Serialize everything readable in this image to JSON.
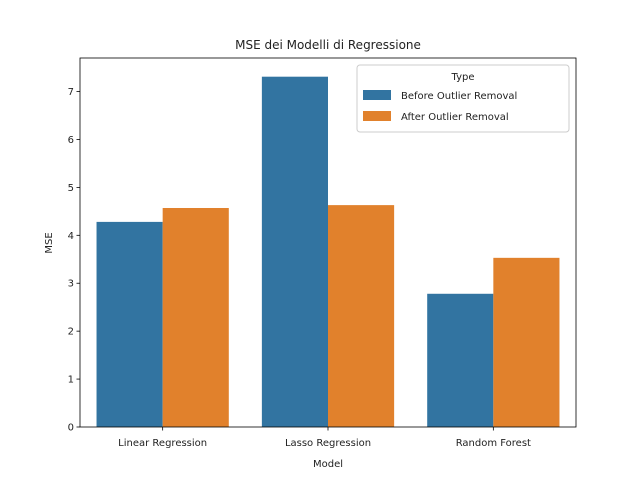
{
  "chart_data": {
    "type": "bar",
    "title": "MSE dei Modelli di Regressione",
    "xlabel": "Model",
    "ylabel": "MSE",
    "categories": [
      "Linear Regression",
      "Lasso Regression",
      "Random Forest"
    ],
    "series": [
      {
        "name": "Before Outlier Removal",
        "values": [
          4.28,
          7.31,
          2.78
        ],
        "color": "#3274a1"
      },
      {
        "name": "After Outlier Removal",
        "values": [
          4.57,
          4.63,
          3.53
        ],
        "color": "#e1812c"
      }
    ],
    "ylim": [
      0,
      7.7
    ],
    "yticks": [
      "0",
      "1",
      "2",
      "3",
      "4",
      "5",
      "6",
      "7"
    ],
    "legend": {
      "title": "Type",
      "placement": "top-right"
    },
    "grid": false
  }
}
